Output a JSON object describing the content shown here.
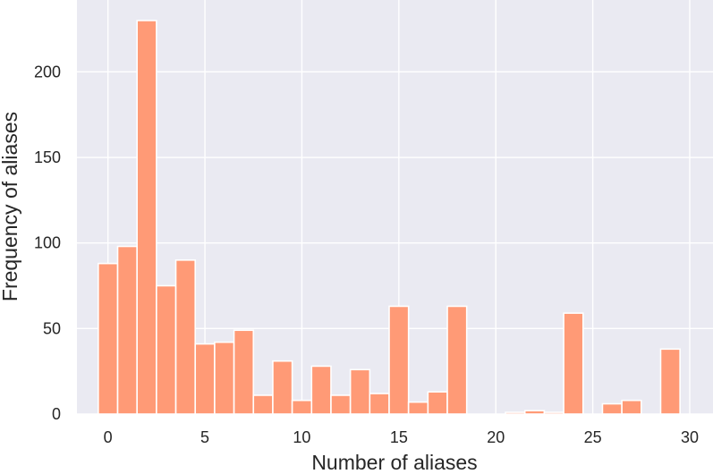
{
  "chart_data": {
    "type": "bar",
    "title": "",
    "xlabel": "Number of aliases",
    "ylabel": "Frequency of aliases",
    "xlim": [
      -1.6,
      31.2
    ],
    "ylim": [
      0,
      242
    ],
    "xticks": [
      0,
      5,
      10,
      15,
      20,
      25,
      30
    ],
    "yticks": [
      0,
      50,
      100,
      150,
      200
    ],
    "grid": true,
    "legend": "none",
    "bar_color": "#ff9a76",
    "background_color": "#eaeaf2",
    "grid_color": "#ffffff",
    "bin_start": -0.5,
    "bin_width": 1,
    "x": [
      0,
      1,
      2,
      3,
      4,
      5,
      6,
      7,
      8,
      9,
      10,
      11,
      12,
      13,
      14,
      15,
      16,
      17,
      18,
      19,
      20,
      21,
      22,
      23,
      24,
      25,
      26,
      27,
      28,
      29
    ],
    "values": [
      88,
      98,
      230,
      75,
      90,
      41,
      42,
      49,
      11,
      31,
      8,
      28,
      11,
      26,
      12,
      63,
      7,
      13,
      63,
      0,
      0,
      1,
      2,
      1,
      59,
      0,
      6,
      8,
      0,
      38
    ]
  }
}
